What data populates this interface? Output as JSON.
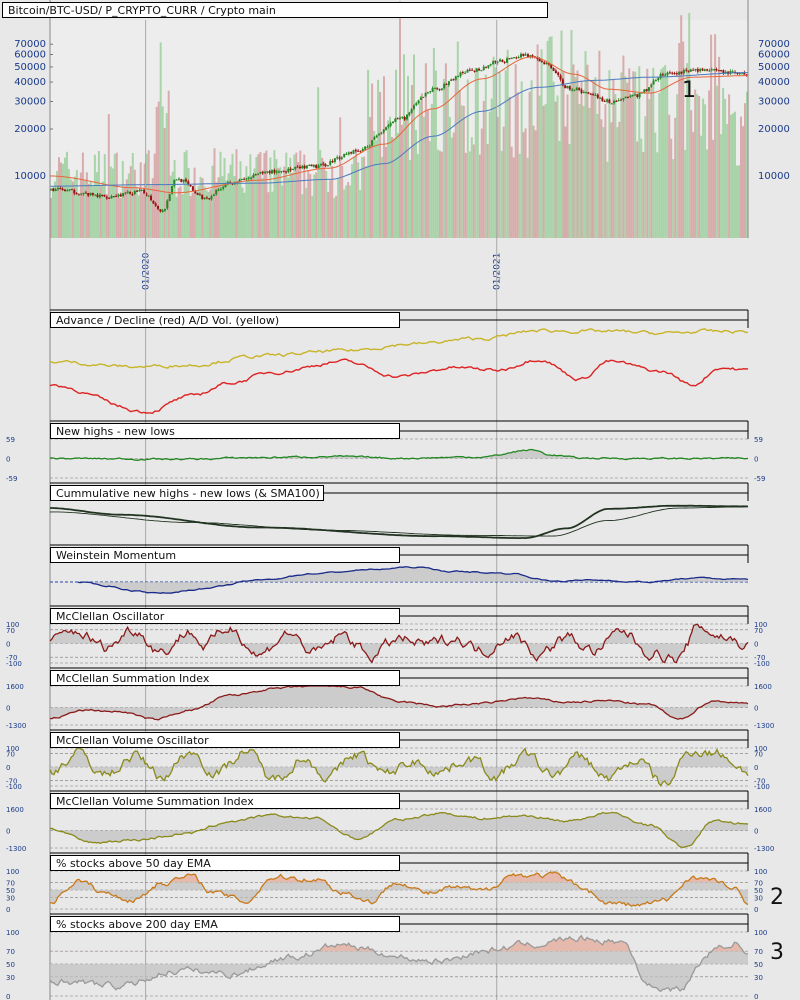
{
  "title": "Bitcoin/BTC-USD/ P_CRYPTO_CURR / Crypto main",
  "colors": {
    "up": "#228822",
    "down": "#991111",
    "ema_fast": "#e8663a",
    "ema_slow": "#4a7ac0",
    "ad": "#dd2222",
    "ad_vol": "#c8b42a",
    "nhnl": "#228822",
    "cum": "#223322",
    "momentum": "#1a2a8a",
    "mcc_osc": "#8a1a1a",
    "mcc_vol": "#8a8a1a",
    "ema50": "#c87a1a",
    "ema200": "#999999",
    "zone_fill": "#c0c0c0",
    "zone_high": "#e8b8a8"
  },
  "chart_data": [
    {
      "type": "candlestick",
      "panel": "main",
      "ylabel": "",
      "y_scale": "log",
      "ylim": [
        4000,
        100000
      ],
      "yticks": [
        10000,
        20000,
        30000,
        40000,
        50000,
        60000,
        70000
      ],
      "x_ticks": [
        "01/2020",
        "01/2021"
      ],
      "anchors": [
        [
          0,
          8200
        ],
        [
          0.08,
          7400
        ],
        [
          0.13,
          7900
        ],
        [
          0.16,
          6000
        ],
        [
          0.18,
          9600
        ],
        [
          0.22,
          7200
        ],
        [
          0.26,
          9200
        ],
        [
          0.32,
          10700
        ],
        [
          0.38,
          11500
        ],
        [
          0.44,
          14500
        ],
        [
          0.5,
          23000
        ],
        [
          0.55,
          36000
        ],
        [
          0.6,
          47000
        ],
        [
          0.65,
          55000
        ],
        [
          0.68,
          60000
        ],
        [
          0.71,
          52000
        ],
        [
          0.74,
          37000
        ],
        [
          0.77,
          34000
        ],
        [
          0.8,
          30000
        ],
        [
          0.84,
          33000
        ],
        [
          0.88,
          45000
        ],
        [
          0.93,
          48000
        ],
        [
          0.97,
          46000
        ],
        [
          1,
          45000
        ]
      ],
      "ema_fast": [
        [
          0,
          10000
        ],
        [
          0.12,
          8400
        ],
        [
          0.18,
          7800
        ],
        [
          0.3,
          9400
        ],
        [
          0.4,
          11200
        ],
        [
          0.48,
          16000
        ],
        [
          0.55,
          27000
        ],
        [
          0.62,
          42000
        ],
        [
          0.69,
          58000
        ],
        [
          0.75,
          45000
        ],
        [
          0.8,
          36000
        ],
        [
          0.86,
          34000
        ],
        [
          0.92,
          43000
        ],
        [
          1,
          44000
        ]
      ],
      "ema_slow": [
        [
          0,
          8600
        ],
        [
          0.15,
          8800
        ],
        [
          0.3,
          9000
        ],
        [
          0.4,
          9500
        ],
        [
          0.48,
          12000
        ],
        [
          0.55,
          18000
        ],
        [
          0.62,
          26000
        ],
        [
          0.7,
          37000
        ],
        [
          0.78,
          41000
        ],
        [
          0.86,
          43000
        ],
        [
          1,
          46000
        ]
      ],
      "markers": [
        "1"
      ]
    },
    {
      "type": "line",
      "panel": "ad",
      "title": "Advance / Decline (red) A/D Vol. (yellow)",
      "series": [
        {
          "anchors": [
            [
              0,
              0.35
            ],
            [
              0.14,
              0.05
            ],
            [
              0.2,
              0.22
            ],
            [
              0.26,
              0.38
            ],
            [
              0.32,
              0.5
            ],
            [
              0.42,
              0.62
            ],
            [
              0.5,
              0.45
            ],
            [
              0.58,
              0.55
            ],
            [
              0.64,
              0.52
            ],
            [
              0.7,
              0.65
            ],
            [
              0.76,
              0.42
            ],
            [
              0.8,
              0.62
            ],
            [
              0.88,
              0.5
            ],
            [
              0.92,
              0.35
            ],
            [
              0.96,
              0.55
            ],
            [
              1,
              0.52
            ]
          ]
        },
        {
          "anchors": [
            [
              0,
              0.62
            ],
            [
              0.12,
              0.56
            ],
            [
              0.2,
              0.58
            ],
            [
              0.3,
              0.68
            ],
            [
              0.42,
              0.74
            ],
            [
              0.52,
              0.82
            ],
            [
              0.62,
              0.88
            ],
            [
              0.7,
              0.97
            ],
            [
              0.8,
              0.96
            ],
            [
              0.88,
              0.94
            ],
            [
              0.94,
              0.96
            ],
            [
              1,
              0.96
            ]
          ]
        }
      ]
    },
    {
      "type": "oscillator",
      "panel": "nhnl",
      "title": "New highs - new lows",
      "yticks": [
        59,
        0,
        -59
      ],
      "anchors": [
        [
          0,
          0
        ],
        [
          0.2,
          -2
        ],
        [
          0.3,
          3
        ],
        [
          0.4,
          6
        ],
        [
          0.5,
          1
        ],
        [
          0.62,
          5
        ],
        [
          0.69,
          26
        ],
        [
          0.72,
          10
        ],
        [
          0.76,
          1
        ],
        [
          0.9,
          0
        ],
        [
          1,
          0
        ]
      ]
    },
    {
      "type": "line",
      "panel": "cum",
      "title": "Cummulative new highs - new lows (& SMA100)",
      "series": [
        {
          "anchors": [
            [
              0,
              0.82
            ],
            [
              0.1,
              0.65
            ],
            [
              0.3,
              0.32
            ],
            [
              0.55,
              0.1
            ],
            [
              0.68,
              0.05
            ],
            [
              0.74,
              0.3
            ],
            [
              0.8,
              0.8
            ],
            [
              0.9,
              0.88
            ],
            [
              1,
              0.86
            ]
          ]
        },
        {
          "anchors": [
            [
              0,
              0.72
            ],
            [
              0.2,
              0.45
            ],
            [
              0.4,
              0.25
            ],
            [
              0.6,
              0.12
            ],
            [
              0.72,
              0.1
            ],
            [
              0.8,
              0.5
            ],
            [
              0.9,
              0.82
            ],
            [
              1,
              0.85
            ]
          ]
        }
      ]
    },
    {
      "type": "oscillator",
      "panel": "momentum",
      "title": "Weinstein Momentum",
      "anchors": [
        [
          0.04,
          0
        ],
        [
          0.08,
          -0.2
        ],
        [
          0.12,
          -0.45
        ],
        [
          0.16,
          -0.6
        ],
        [
          0.22,
          -0.35
        ],
        [
          0.3,
          0.1
        ],
        [
          0.38,
          0.45
        ],
        [
          0.46,
          0.65
        ],
        [
          0.52,
          0.78
        ],
        [
          0.58,
          0.55
        ],
        [
          0.66,
          0.45
        ],
        [
          0.72,
          0.05
        ],
        [
          0.78,
          0.1
        ],
        [
          0.86,
          0.0
        ],
        [
          0.92,
          0.2
        ],
        [
          1,
          0.15
        ]
      ]
    },
    {
      "type": "oscillator",
      "panel": "mcc",
      "title": "McClellan Oscillator",
      "yticks": [
        100,
        70,
        0,
        -70,
        -100
      ],
      "anchors": [
        [
          0,
          10
        ],
        [
          0.04,
          60
        ],
        [
          0.08,
          -20
        ],
        [
          0.12,
          75
        ],
        [
          0.16,
          -40
        ],
        [
          0.2,
          65
        ],
        [
          0.22,
          -10
        ],
        [
          0.26,
          80
        ],
        [
          0.3,
          -60
        ],
        [
          0.34,
          55
        ],
        [
          0.38,
          -50
        ],
        [
          0.42,
          40
        ],
        [
          0.46,
          -60
        ],
        [
          0.5,
          20
        ],
        [
          0.54,
          -10
        ],
        [
          0.58,
          30
        ],
        [
          0.62,
          -40
        ],
        [
          0.66,
          50
        ],
        [
          0.7,
          -55
        ],
        [
          0.74,
          30
        ],
        [
          0.78,
          -40
        ],
        [
          0.82,
          60
        ],
        [
          0.86,
          -45
        ],
        [
          0.9,
          -80
        ],
        [
          0.93,
          85
        ],
        [
          0.96,
          40
        ],
        [
          1,
          -10
        ]
      ]
    },
    {
      "type": "oscillator",
      "panel": "mcsum",
      "title": "McClellan Summation Index",
      "yticks": [
        1600,
        0,
        -1300
      ],
      "anchors": [
        [
          0,
          -800
        ],
        [
          0.05,
          -200
        ],
        [
          0.1,
          -300
        ],
        [
          0.15,
          -900
        ],
        [
          0.2,
          -200
        ],
        [
          0.26,
          900
        ],
        [
          0.32,
          1400
        ],
        [
          0.38,
          1600
        ],
        [
          0.44,
          1500
        ],
        [
          0.5,
          400
        ],
        [
          0.56,
          100
        ],
        [
          0.62,
          300
        ],
        [
          0.68,
          700
        ],
        [
          0.74,
          400
        ],
        [
          0.8,
          500
        ],
        [
          0.86,
          200
        ],
        [
          0.9,
          -900
        ],
        [
          0.95,
          500
        ],
        [
          1,
          300
        ]
      ]
    },
    {
      "type": "oscillator",
      "panel": "mcvol",
      "title": "McClellan Volume Oscillator",
      "yticks": [
        100,
        70,
        0,
        -70,
        -100
      ],
      "anchors": [
        [
          0,
          -20
        ],
        [
          0.04,
          70
        ],
        [
          0.08,
          -40
        ],
        [
          0.12,
          60
        ],
        [
          0.16,
          -50
        ],
        [
          0.2,
          80
        ],
        [
          0.24,
          -30
        ],
        [
          0.28,
          90
        ],
        [
          0.32,
          -70
        ],
        [
          0.36,
          50
        ],
        [
          0.4,
          -50
        ],
        [
          0.44,
          70
        ],
        [
          0.48,
          -40
        ],
        [
          0.52,
          30
        ],
        [
          0.56,
          -20
        ],
        [
          0.6,
          50
        ],
        [
          0.64,
          -50
        ],
        [
          0.68,
          60
        ],
        [
          0.72,
          -40
        ],
        [
          0.76,
          50
        ],
        [
          0.8,
          -60
        ],
        [
          0.84,
          40
        ],
        [
          0.88,
          -95
        ],
        [
          0.92,
          90
        ],
        [
          0.96,
          70
        ],
        [
          1,
          -20
        ]
      ]
    },
    {
      "type": "oscillator",
      "panel": "mcvsum",
      "title": "McClellan Volume Summation Index",
      "yticks": [
        1600,
        0,
        -1300
      ],
      "anchors": [
        [
          0,
          100
        ],
        [
          0.06,
          -900
        ],
        [
          0.12,
          -700
        ],
        [
          0.2,
          -200
        ],
        [
          0.26,
          700
        ],
        [
          0.32,
          1100
        ],
        [
          0.38,
          900
        ],
        [
          0.44,
          -600
        ],
        [
          0.5,
          800
        ],
        [
          0.56,
          1300
        ],
        [
          0.62,
          900
        ],
        [
          0.68,
          1100
        ],
        [
          0.74,
          700
        ],
        [
          0.8,
          1300
        ],
        [
          0.86,
          400
        ],
        [
          0.91,
          -1300
        ],
        [
          0.95,
          700
        ],
        [
          1,
          500
        ]
      ]
    },
    {
      "type": "oscillator",
      "panel": "ema50",
      "title": "% stocks above 50 day EMA",
      "yticks": [
        100,
        70,
        50,
        30,
        0
      ],
      "zone_high": 70,
      "zone_low": 30,
      "center": 50,
      "anchors": [
        [
          0,
          20
        ],
        [
          0.04,
          75
        ],
        [
          0.08,
          40
        ],
        [
          0.12,
          25
        ],
        [
          0.16,
          70
        ],
        [
          0.2,
          85
        ],
        [
          0.24,
          40
        ],
        [
          0.28,
          20
        ],
        [
          0.32,
          85
        ],
        [
          0.38,
          80
        ],
        [
          0.42,
          45
        ],
        [
          0.46,
          20
        ],
        [
          0.5,
          75
        ],
        [
          0.54,
          40
        ],
        [
          0.58,
          55
        ],
        [
          0.62,
          45
        ],
        [
          0.66,
          90
        ],
        [
          0.72,
          88
        ],
        [
          0.76,
          60
        ],
        [
          0.8,
          15
        ],
        [
          0.84,
          10
        ],
        [
          0.88,
          20
        ],
        [
          0.92,
          85
        ],
        [
          0.96,
          70
        ],
        [
          0.98,
          50
        ],
        [
          1,
          10
        ]
      ],
      "markers": [
        "2"
      ]
    },
    {
      "type": "oscillator",
      "panel": "ema200",
      "title": "% stocks above 200 day EMA",
      "yticks": [
        100,
        70,
        50,
        30,
        0
      ],
      "zone_high": 70,
      "zone_low": 30,
      "center": 50,
      "anchors": [
        [
          0,
          25
        ],
        [
          0.1,
          15
        ],
        [
          0.18,
          40
        ],
        [
          0.26,
          35
        ],
        [
          0.34,
          60
        ],
        [
          0.42,
          80
        ],
        [
          0.47,
          70
        ],
        [
          0.5,
          60
        ],
        [
          0.56,
          55
        ],
        [
          0.62,
          70
        ],
        [
          0.68,
          80
        ],
        [
          0.76,
          90
        ],
        [
          0.82,
          85
        ],
        [
          0.86,
          15
        ],
        [
          0.9,
          10
        ],
        [
          0.95,
          70
        ],
        [
          0.98,
          85
        ],
        [
          1,
          60
        ]
      ],
      "markers": [
        "3"
      ]
    }
  ]
}
